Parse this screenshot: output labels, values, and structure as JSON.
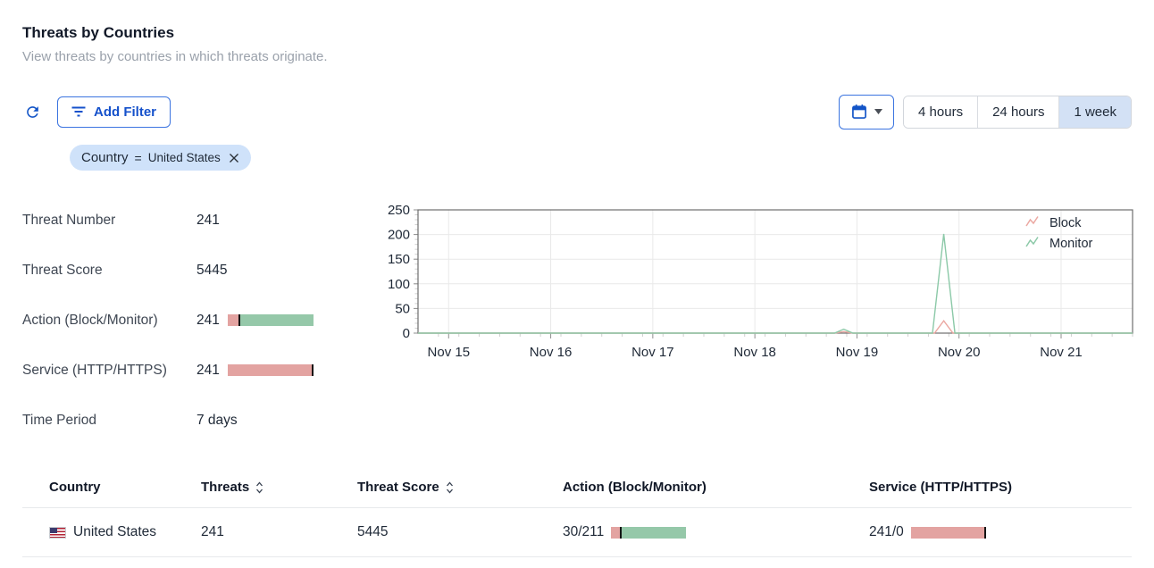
{
  "page": {
    "title": "Threats by Countries",
    "subtitle": "View threats by countries in which threats originate."
  },
  "toolbar": {
    "refresh_icon": "refresh-icon",
    "add_filter_label": "Add Filter",
    "date_picker_icon": "calendar-icon",
    "time_ranges": [
      {
        "label": "4 hours",
        "active": false
      },
      {
        "label": "24 hours",
        "active": false
      },
      {
        "label": "1 week",
        "active": true
      }
    ]
  },
  "filter_chip": {
    "field": "Country",
    "operator": "=",
    "value": "United States"
  },
  "stats": [
    {
      "label": "Threat Number",
      "value": "241",
      "bar": null
    },
    {
      "label": "Threat Score",
      "value": "5445",
      "bar": null
    },
    {
      "label": "Action (Block/Monitor)",
      "value": "241",
      "bar": "action_bar"
    },
    {
      "label": "Service (HTTP/HTTPS)",
      "value": "241",
      "bar": "service_bar"
    },
    {
      "label": "Time Period",
      "value": "7 days",
      "bar": null
    }
  ],
  "bars": {
    "action_bar": {
      "first": 30,
      "second": 211
    },
    "service_bar": {
      "first": 241,
      "second": 0
    }
  },
  "colors": {
    "accent_blue": "#1551cb",
    "chip_bg": "#cfe2fa",
    "active_range_bg": "#d3e1f5",
    "bar_red": "#e3a3a1",
    "bar_green": "#95c8a9",
    "bar_divider": "#141414",
    "line_block": "#eba8a2",
    "line_monitor": "#8cc9a8",
    "grid": "#e9e9e9",
    "plot_border": "#6e6e6e"
  },
  "chart_data": {
    "type": "line",
    "title": "",
    "xlabel": "",
    "ylabel": "",
    "grid": true,
    "legend_position": "top-right",
    "x_ticks": [
      "Nov 15",
      "Nov 16",
      "Nov 17",
      "Nov 18",
      "Nov 19",
      "Nov 20",
      "Nov 21"
    ],
    "x_tick_values": [
      15,
      16,
      17,
      18,
      19,
      20,
      21
    ],
    "xlim": [
      14.7,
      21.7
    ],
    "ylim": [
      0,
      250
    ],
    "y_ticks": [
      0,
      50,
      100,
      150,
      200,
      250
    ],
    "series": [
      {
        "name": "Block",
        "color": "#eba8a2",
        "points": [
          [
            14.7,
            0
          ],
          [
            18.78,
            0
          ],
          [
            18.87,
            3
          ],
          [
            18.96,
            0
          ],
          [
            19.76,
            0
          ],
          [
            19.85,
            25
          ],
          [
            19.94,
            0
          ],
          [
            21.7,
            0
          ]
        ]
      },
      {
        "name": "Monitor",
        "color": "#8cc9a8",
        "points": [
          [
            14.7,
            0
          ],
          [
            18.78,
            0
          ],
          [
            18.87,
            8
          ],
          [
            18.96,
            0
          ],
          [
            19.74,
            0
          ],
          [
            19.85,
            201
          ],
          [
            19.96,
            0
          ],
          [
            21.7,
            0
          ]
        ]
      }
    ]
  },
  "table": {
    "columns": [
      {
        "label": "Country",
        "sortable": false
      },
      {
        "label": "Threats",
        "sortable": true
      },
      {
        "label": "Threat Score",
        "sortable": true
      },
      {
        "label": "Action (Block/Monitor)",
        "sortable": false
      },
      {
        "label": "Service (HTTP/HTTPS)",
        "sortable": false
      }
    ],
    "rows": [
      {
        "flag": "united-states-flag",
        "country": "United States",
        "threats": "241",
        "threat_score": "5445",
        "action_text": "30/211",
        "action_bar": "action_bar",
        "service_text": "241/0",
        "service_bar": "service_bar"
      }
    ]
  }
}
